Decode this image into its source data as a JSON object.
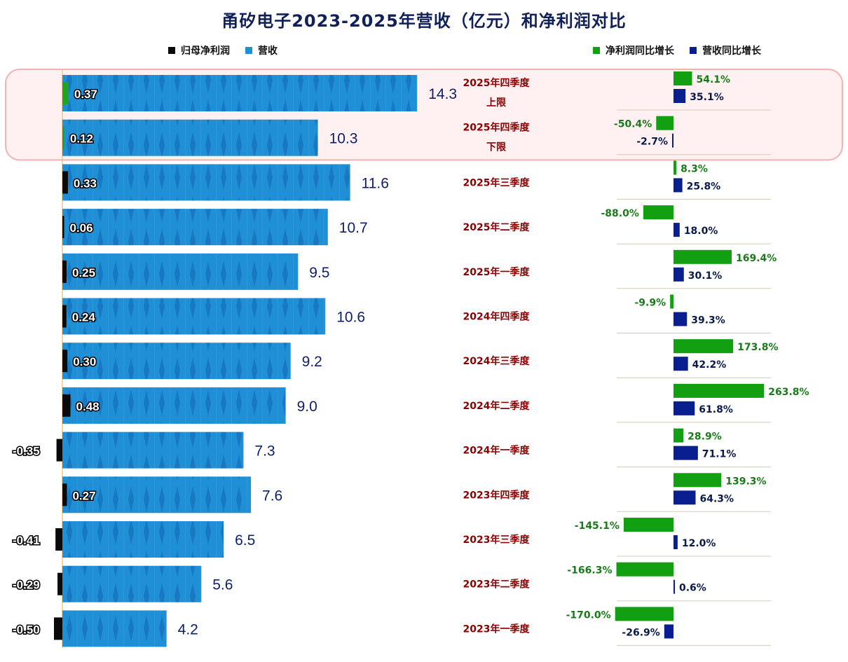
{
  "title": "甬矽电子2023-2025年营收（亿元）和净利润对比",
  "legend_left": [
    {
      "label": "归母净利润",
      "color": "#0a0a0a"
    },
    {
      "label": "营收",
      "color": "#1f8fd6"
    }
  ],
  "legend_right": [
    {
      "label": "净利润同比增长",
      "color": "#12a012"
    },
    {
      "label": "营收同比增长",
      "color": "#0a1f8f"
    }
  ],
  "colors": {
    "revenue": "#1f8fd6",
    "net_profit": "#0a0a0a",
    "net_profit_highlight": "#22a322",
    "profit_yoy": "#12a012",
    "revenue_yoy": "#0a1f8f",
    "quarter_label": "#8b0000",
    "revenue_label": "#0d1e6e"
  },
  "chart_data": {
    "type": "bar",
    "categories": [
      [
        "2025年四季度",
        "上限"
      ],
      [
        "2025年四季度",
        "下限"
      ],
      [
        "2025年三季度"
      ],
      [
        "2025年二季度"
      ],
      [
        "2025年一季度"
      ],
      [
        "2024年四季度"
      ],
      [
        "2024年三季度"
      ],
      [
        "2024年二季度"
      ],
      [
        "2024年一季度"
      ],
      [
        "2023年四季度"
      ],
      [
        "2023年三季度"
      ],
      [
        "2023年二季度"
      ],
      [
        "2023年一季度"
      ]
    ],
    "series": [
      {
        "name": "营收",
        "values": [
          14.3,
          10.3,
          11.6,
          10.7,
          9.5,
          10.6,
          9.2,
          9.0,
          7.3,
          7.6,
          6.5,
          5.6,
          4.2
        ],
        "labels": [
          "14.3",
          "10.3",
          "11.6",
          "10.7",
          "9.5",
          "10.6",
          "9.2",
          "9.0",
          "7.3",
          "7.6",
          "6.5",
          "5.6",
          "4.2"
        ]
      },
      {
        "name": "归母净利润",
        "values": [
          0.37,
          0.12,
          0.33,
          0.06,
          0.25,
          0.24,
          0.3,
          0.48,
          -0.35,
          0.27,
          -0.41,
          -0.29,
          -0.5
        ],
        "labels": [
          "0.37",
          "0.12",
          "0.33",
          "0.06",
          "0.25",
          "0.24",
          "0.30",
          "0.48",
          "-0.35",
          "0.27",
          "-0.41",
          "-0.29",
          "-0.50"
        ]
      },
      {
        "name": "净利润同比增长",
        "values": [
          54.1,
          -50.4,
          8.3,
          -88.0,
          169.4,
          -9.9,
          173.8,
          263.8,
          28.9,
          139.3,
          -145.1,
          -166.3,
          -170.0
        ],
        "labels": [
          "54.1%",
          "-50.4%",
          "8.3%",
          "-88.0%",
          "169.4%",
          "-9.9%",
          "173.8%",
          "263.8%",
          "28.9%",
          "139.3%",
          "-145.1%",
          "-166.3%",
          "-170.0%"
        ]
      },
      {
        "name": "营收同比增长",
        "values": [
          35.1,
          -2.7,
          25.8,
          18.0,
          30.1,
          39.3,
          42.2,
          61.8,
          71.1,
          64.3,
          12.0,
          0.6,
          -26.9
        ],
        "labels": [
          "35.1%",
          "-2.7%",
          "25.8%",
          "18.0%",
          "30.1%",
          "39.3%",
          "42.2%",
          "61.8%",
          "71.1%",
          "64.3%",
          "12.0%",
          "0.6%",
          "-26.9%"
        ]
      }
    ],
    "highlight_categories": [
      0,
      1
    ]
  }
}
